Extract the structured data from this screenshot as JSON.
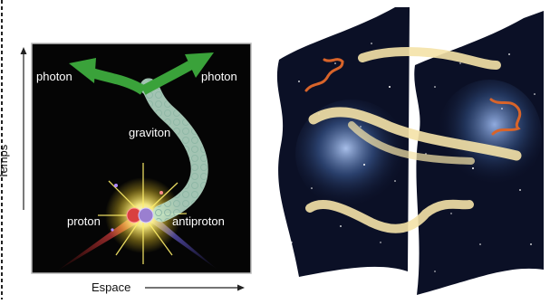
{
  "left_panel": {
    "labels": {
      "photon_left": "photon",
      "photon_right": "photon",
      "graviton": "graviton",
      "proton": "proton",
      "antiproton": "antiproton"
    },
    "colors": {
      "background": "#050505",
      "photon_arrow": "#3aa23a",
      "graviton_tube": "#bfe6d2",
      "burst": "#ffee55",
      "proton": "#d94040",
      "antiproton": "#9a7fd0"
    }
  },
  "axes": {
    "time_label": "Temps",
    "space_label": "Espace"
  },
  "right_panel": {
    "colors": {
      "space_dark": "#0b1026",
      "nebula": "#3a5a8c",
      "string_cream": "#f5e3a8",
      "string_orange": "#d8642a"
    }
  }
}
